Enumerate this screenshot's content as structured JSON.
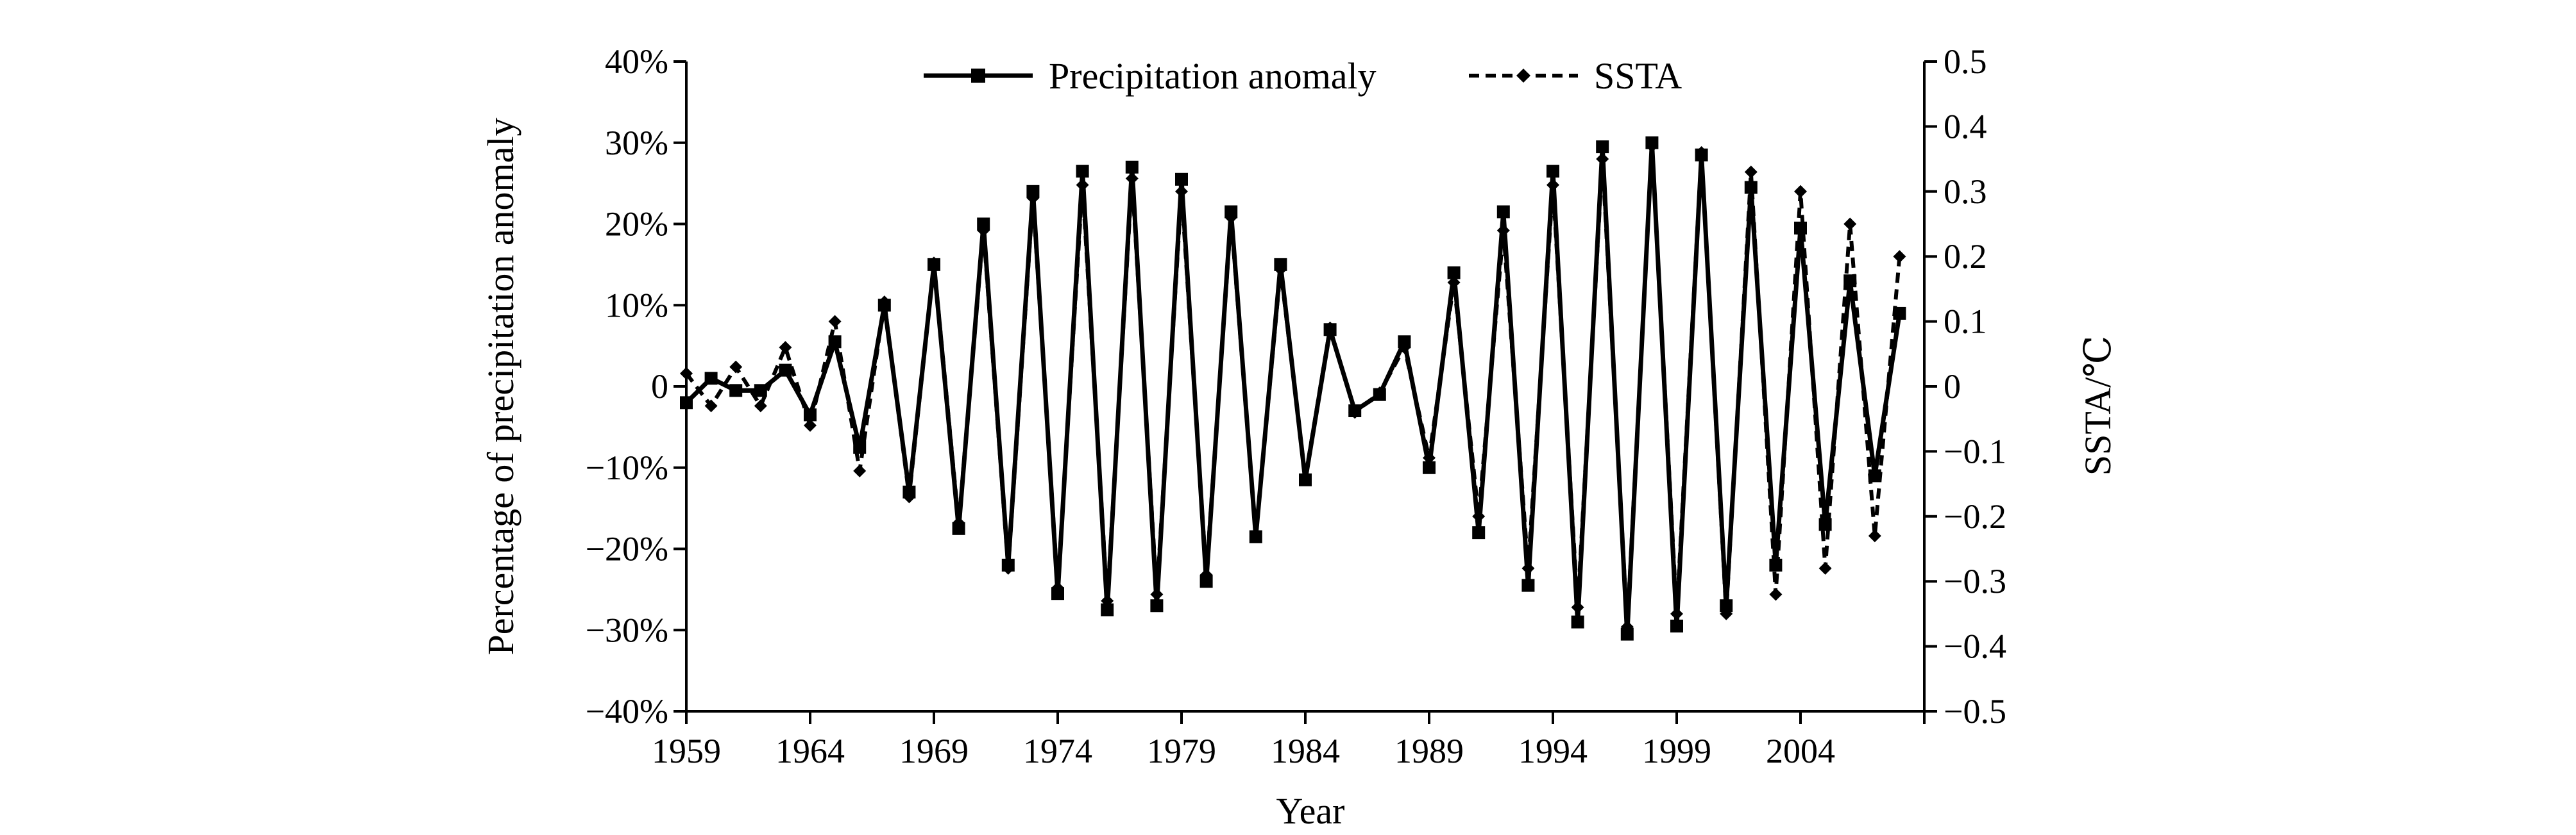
{
  "chart_data": {
    "type": "line",
    "title": "",
    "xlabel": "Year",
    "ylabel": "Percentage of precipitation anomaly",
    "ylabel_right": "SSTA/℃",
    "xlim": [
      1959,
      2009
    ],
    "ylim": [
      -40,
      40
    ],
    "ylim_right": [
      -0.5,
      0.5
    ],
    "x_ticks": [
      1959,
      1964,
      1969,
      1974,
      1979,
      1984,
      1989,
      1994,
      1999,
      2004
    ],
    "x_tick_labels": [
      "1959",
      "1964",
      "1969",
      "1974",
      "1979",
      "1984",
      "1989",
      "1994",
      "1999",
      "2004"
    ],
    "y_ticks": [
      40,
      30,
      20,
      10,
      0,
      -10,
      -20,
      -30,
      -40
    ],
    "y_tick_labels": [
      "40%",
      "30%",
      "20%",
      "10%",
      "0",
      "−10%",
      "−20%",
      "−30%",
      "−40%"
    ],
    "y2_ticks": [
      0.5,
      0.4,
      0.3,
      0.2,
      0.1,
      0,
      -0.1,
      -0.2,
      -0.3,
      -0.4,
      -0.5
    ],
    "y2_tick_labels": [
      "0.5",
      "0.4",
      "0.3",
      "0.2",
      "0.1",
      "0",
      "−0.1",
      "−0.2",
      "−0.3",
      "−0.4",
      "−0.5"
    ],
    "grid": false,
    "legend_position": "top-center",
    "x": [
      1959,
      1960,
      1961,
      1962,
      1963,
      1964,
      1965,
      1966,
      1967,
      1968,
      1969,
      1970,
      1971,
      1972,
      1973,
      1974,
      1975,
      1976,
      1977,
      1978,
      1979,
      1980,
      1981,
      1982,
      1983,
      1984,
      1985,
      1986,
      1987,
      1988,
      1989,
      1990,
      1991,
      1992,
      1993,
      1994,
      1995,
      1996,
      1997,
      1998,
      1999,
      2000,
      2001,
      2002,
      2003,
      2004,
      2005,
      2006,
      2007,
      2008
    ],
    "series": [
      {
        "name": "Precipitation anomaly",
        "axis": "left",
        "line_style": "solid",
        "marker": "square",
        "color": "#000000",
        "values": [
          -2,
          1,
          -0.5,
          -0.5,
          2,
          -3.5,
          5.5,
          -7.5,
          10,
          -13,
          15,
          -17.5,
          20,
          -22,
          24,
          -25.5,
          26.5,
          -27.5,
          27,
          -27,
          25.5,
          -24,
          21.5,
          -18.5,
          15,
          -11.5,
          7,
          -3,
          -1,
          5.5,
          -10,
          14,
          -18,
          21.5,
          -24.5,
          26.5,
          -29,
          29.5,
          -30.5,
          30,
          -29.5,
          28.5,
          -27,
          24.5,
          -22,
          19.5,
          -17,
          13,
          -11,
          9
        ]
      },
      {
        "name": "SSTA",
        "axis": "right",
        "line_style": "dashed",
        "marker": "diamond",
        "color": "#000000",
        "values": [
          0.02,
          -0.03,
          0.03,
          -0.03,
          0.06,
          -0.06,
          0.1,
          -0.13,
          0.13,
          -0.17,
          0.19,
          -0.21,
          0.24,
          -0.28,
          0.29,
          -0.31,
          0.31,
          -0.33,
          0.32,
          -0.32,
          0.3,
          -0.29,
          0.26,
          -0.23,
          0.18,
          -0.14,
          0.09,
          -0.04,
          -0.01,
          0.06,
          -0.11,
          0.16,
          -0.2,
          0.24,
          -0.28,
          0.31,
          -0.34,
          0.35,
          -0.37,
          0.37,
          -0.35,
          0.36,
          -0.35,
          0.33,
          -0.32,
          0.3,
          -0.28,
          0.25,
          -0.23,
          0.2
        ]
      }
    ]
  }
}
